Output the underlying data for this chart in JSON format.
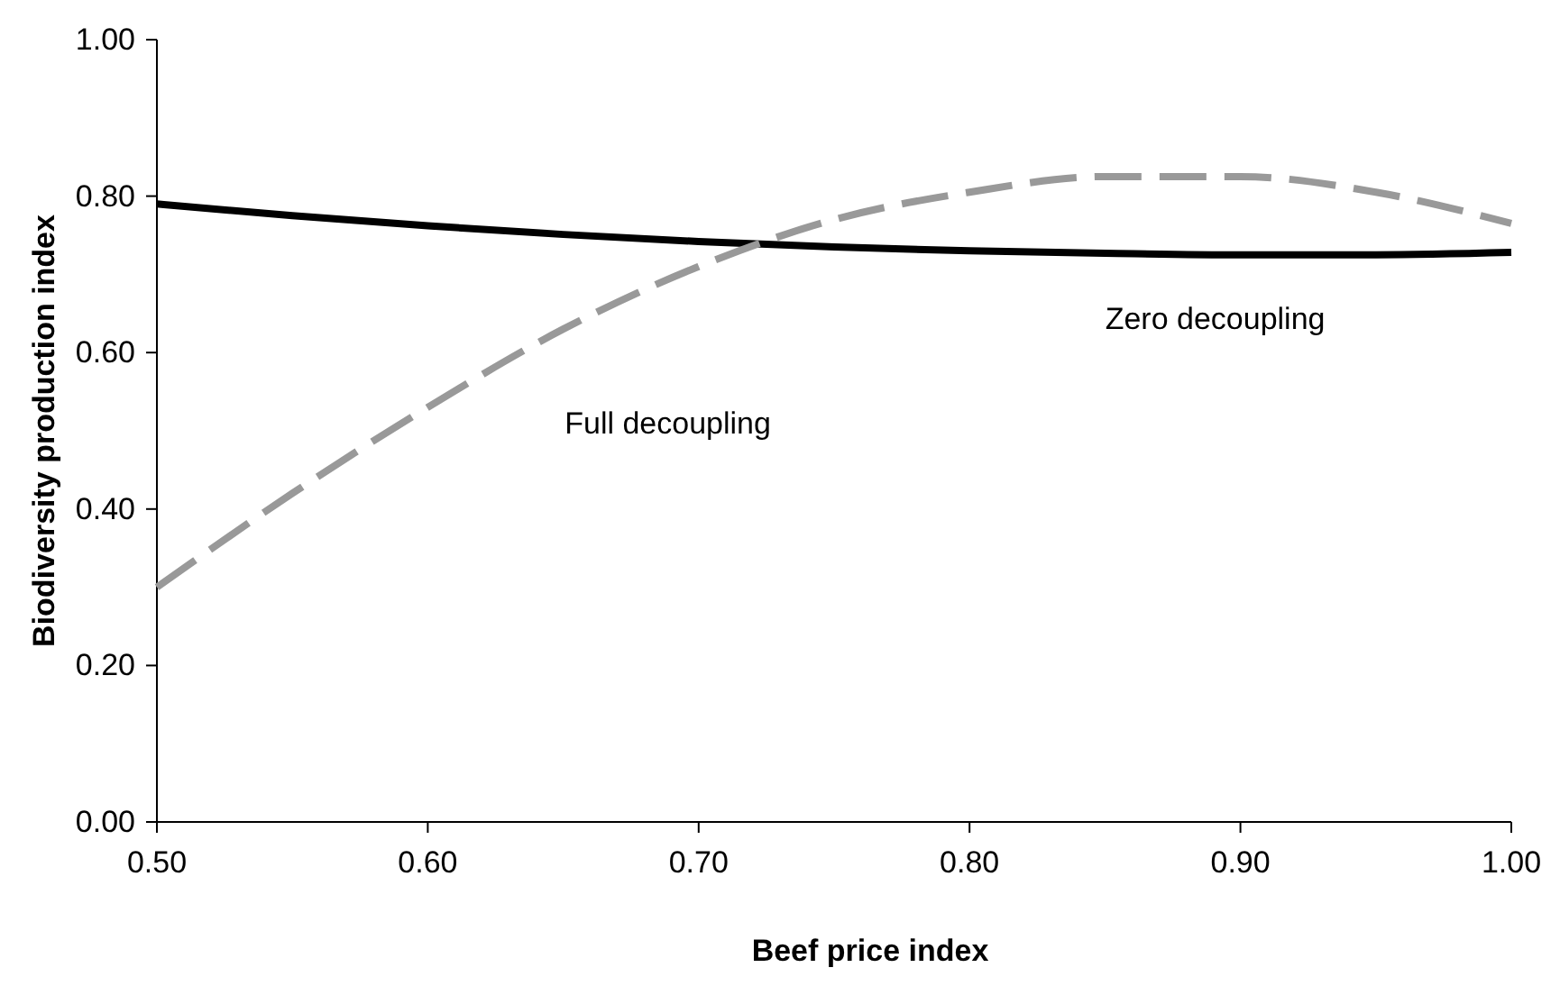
{
  "chart_data": {
    "type": "line",
    "xlabel": "Beef price index",
    "ylabel": "Biodiversity production index",
    "xlim": [
      0.5,
      1.0
    ],
    "ylim": [
      0,
      1
    ],
    "xticks": [
      {
        "value": 0.5,
        "label": "0.50"
      },
      {
        "value": 0.6,
        "label": "0.60"
      },
      {
        "value": 0.7,
        "label": "0.70"
      },
      {
        "value": 0.8,
        "label": "0.80"
      },
      {
        "value": 0.9,
        "label": "0.90"
      },
      {
        "value": 1.0,
        "label": "1.00"
      }
    ],
    "yticks": [
      {
        "value": 0,
        "label": "0.00"
      },
      {
        "value": 0.2,
        "label": "0.20"
      },
      {
        "value": 0.4,
        "label": "0.40"
      },
      {
        "value": 0.6,
        "label": "0.60"
      },
      {
        "value": 0.8,
        "label": "0.80"
      },
      {
        "value": 1.0,
        "label": "1.00"
      }
    ],
    "grid": false,
    "legend": false,
    "marker": "none",
    "series": [
      {
        "name": "Zero decoupling",
        "color": "#000000",
        "line_style": "solid",
        "x": [
          0.5,
          0.55,
          0.6,
          0.65,
          0.7,
          0.75,
          0.8,
          0.85,
          0.9,
          0.95,
          1.0
        ],
        "values": [
          0.79,
          0.775,
          0.762,
          0.751,
          0.742,
          0.735,
          0.73,
          0.727,
          0.725,
          0.725,
          0.728
        ]
      },
      {
        "name": "Full decoupling",
        "color": "#999999",
        "line_style": "dashed",
        "x": [
          0.5,
          0.55,
          0.6,
          0.65,
          0.7,
          0.75,
          0.8,
          0.85,
          0.9,
          0.95,
          1.0
        ],
        "values": [
          0.3,
          0.42,
          0.53,
          0.63,
          0.71,
          0.77,
          0.805,
          0.825,
          0.825,
          0.805,
          0.765
        ]
      }
    ]
  }
}
